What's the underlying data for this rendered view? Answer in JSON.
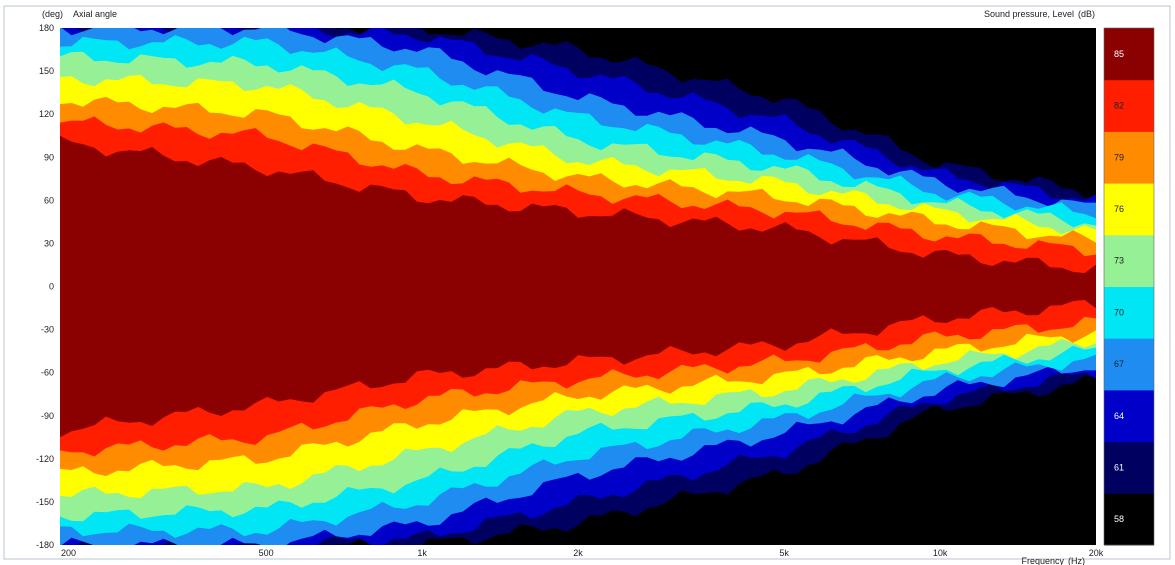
{
  "chart_data": {
    "type": "heatmap",
    "title": "",
    "ylabel_unit": "(deg)",
    "ylabel": "Axial angle",
    "colorbar_label": "Sound pressure, Level",
    "colorbar_unit": "(dB)",
    "xlabel": "Frequency",
    "xlabel_unit": "(Hz)",
    "x_scale": "log",
    "xlim": [
      200,
      20000
    ],
    "ylim": [
      -180,
      180
    ],
    "x_ticks": [
      200,
      500,
      1000,
      2000,
      5000,
      10000,
      20000
    ],
    "x_tick_labels": [
      "200",
      "500",
      "1k",
      "2k",
      "5k",
      "10k",
      "20k"
    ],
    "y_ticks": [
      180,
      150,
      120,
      90,
      60,
      30,
      0,
      -30,
      -60,
      -90,
      -120,
      -150,
      -180
    ],
    "y_tick_labels": [
      "180",
      "150",
      "120",
      "90",
      "60",
      "30",
      "0",
      "-30",
      "-60",
      "-90",
      "-120",
      "-150",
      "-180"
    ],
    "levels": [
      58,
      61,
      64,
      67,
      70,
      73,
      76,
      79,
      82,
      85
    ],
    "level_colors": [
      "#000000",
      "#000060",
      "#0000c8",
      "#1e8cf0",
      "#00e6f5",
      "#96f096",
      "#ffff00",
      "#ff8c00",
      "#ff1e00",
      "#8b0000"
    ],
    "beamwidth_deg": {
      "frequencies": [
        200,
        500,
        1000,
        2000,
        5000,
        10000,
        20000
      ],
      "minus3dB_half_angle": [
        100,
        82,
        62,
        52,
        40,
        22,
        12
      ],
      "level_82_half_angle": [
        115,
        105,
        78,
        65,
        52,
        35,
        25
      ],
      "level_79_half_angle": [
        130,
        120,
        95,
        76,
        62,
        45,
        32
      ],
      "level_76_half_angle": [
        145,
        140,
        115,
        88,
        72,
        52,
        38
      ],
      "level_73_half_angle": [
        160,
        155,
        135,
        102,
        82,
        58,
        44
      ],
      "level_70_half_angle": [
        170,
        170,
        150,
        118,
        92,
        65,
        50
      ],
      "level_67_half_angle": [
        180,
        180,
        165,
        132,
        102,
        72,
        55
      ],
      "level_64_half_angle": [
        180,
        180,
        175,
        150,
        115,
        78,
        60
      ],
      "level_61_half_angle": [
        180,
        180,
        180,
        165,
        130,
        85,
        65
      ]
    }
  }
}
